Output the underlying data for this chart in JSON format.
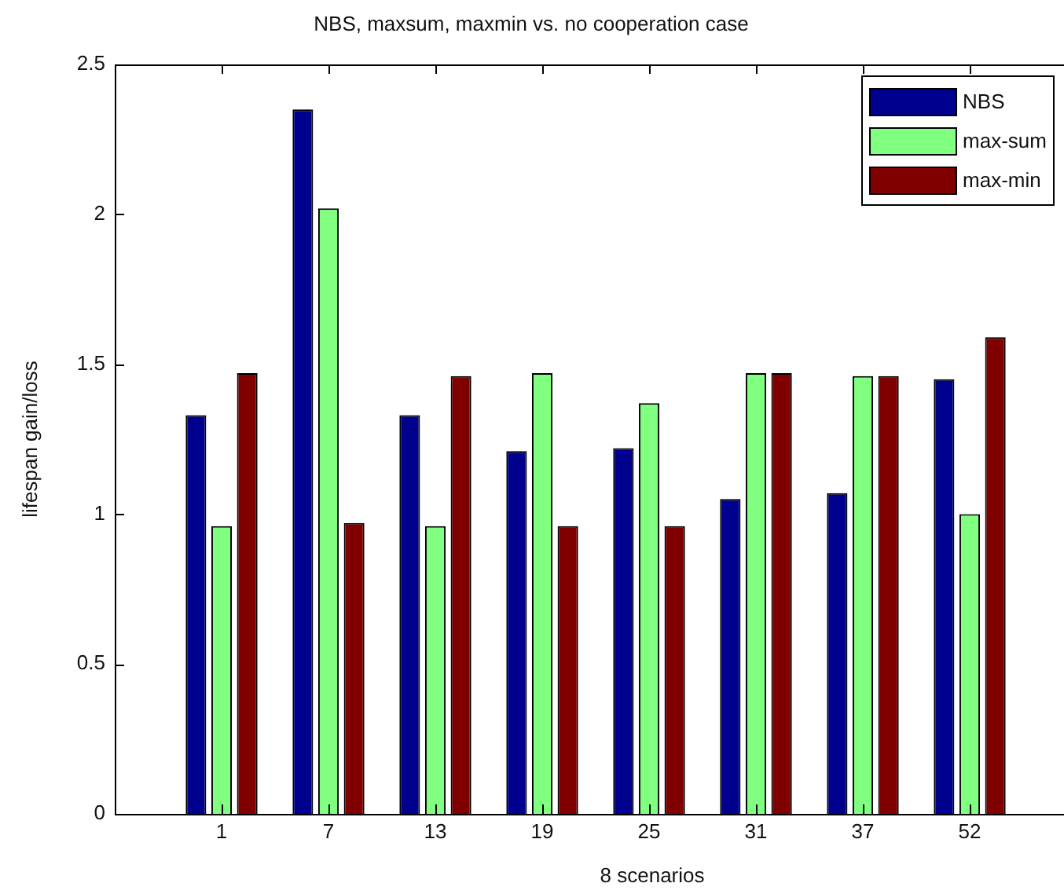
{
  "chart_data": {
    "type": "bar",
    "title": "NBS, maxsum, maxmin vs. no cooperation case",
    "xlabel": "8 scenarios",
    "ylabel": "lifespan gain/loss",
    "categories": [
      "1",
      "7",
      "13",
      "19",
      "25",
      "31",
      "37",
      "52"
    ],
    "series": [
      {
        "name": "NBS",
        "color": "#00008f",
        "values": [
          1.33,
          2.35,
          1.33,
          1.21,
          1.22,
          1.05,
          1.07,
          1.45
        ]
      },
      {
        "name": "max-sum",
        "color": "#80ff80",
        "values": [
          0.96,
          2.02,
          0.96,
          1.47,
          1.37,
          1.47,
          1.46,
          1.0
        ]
      },
      {
        "name": "max-min",
        "color": "#800000",
        "values": [
          1.47,
          0.97,
          1.46,
          0.96,
          0.96,
          1.47,
          1.46,
          1.59
        ]
      }
    ],
    "ylim": [
      0,
      2.5
    ],
    "yticks": [
      0,
      0.5,
      1,
      1.5,
      2,
      2.5
    ],
    "grid": false,
    "legend": "top right"
  }
}
